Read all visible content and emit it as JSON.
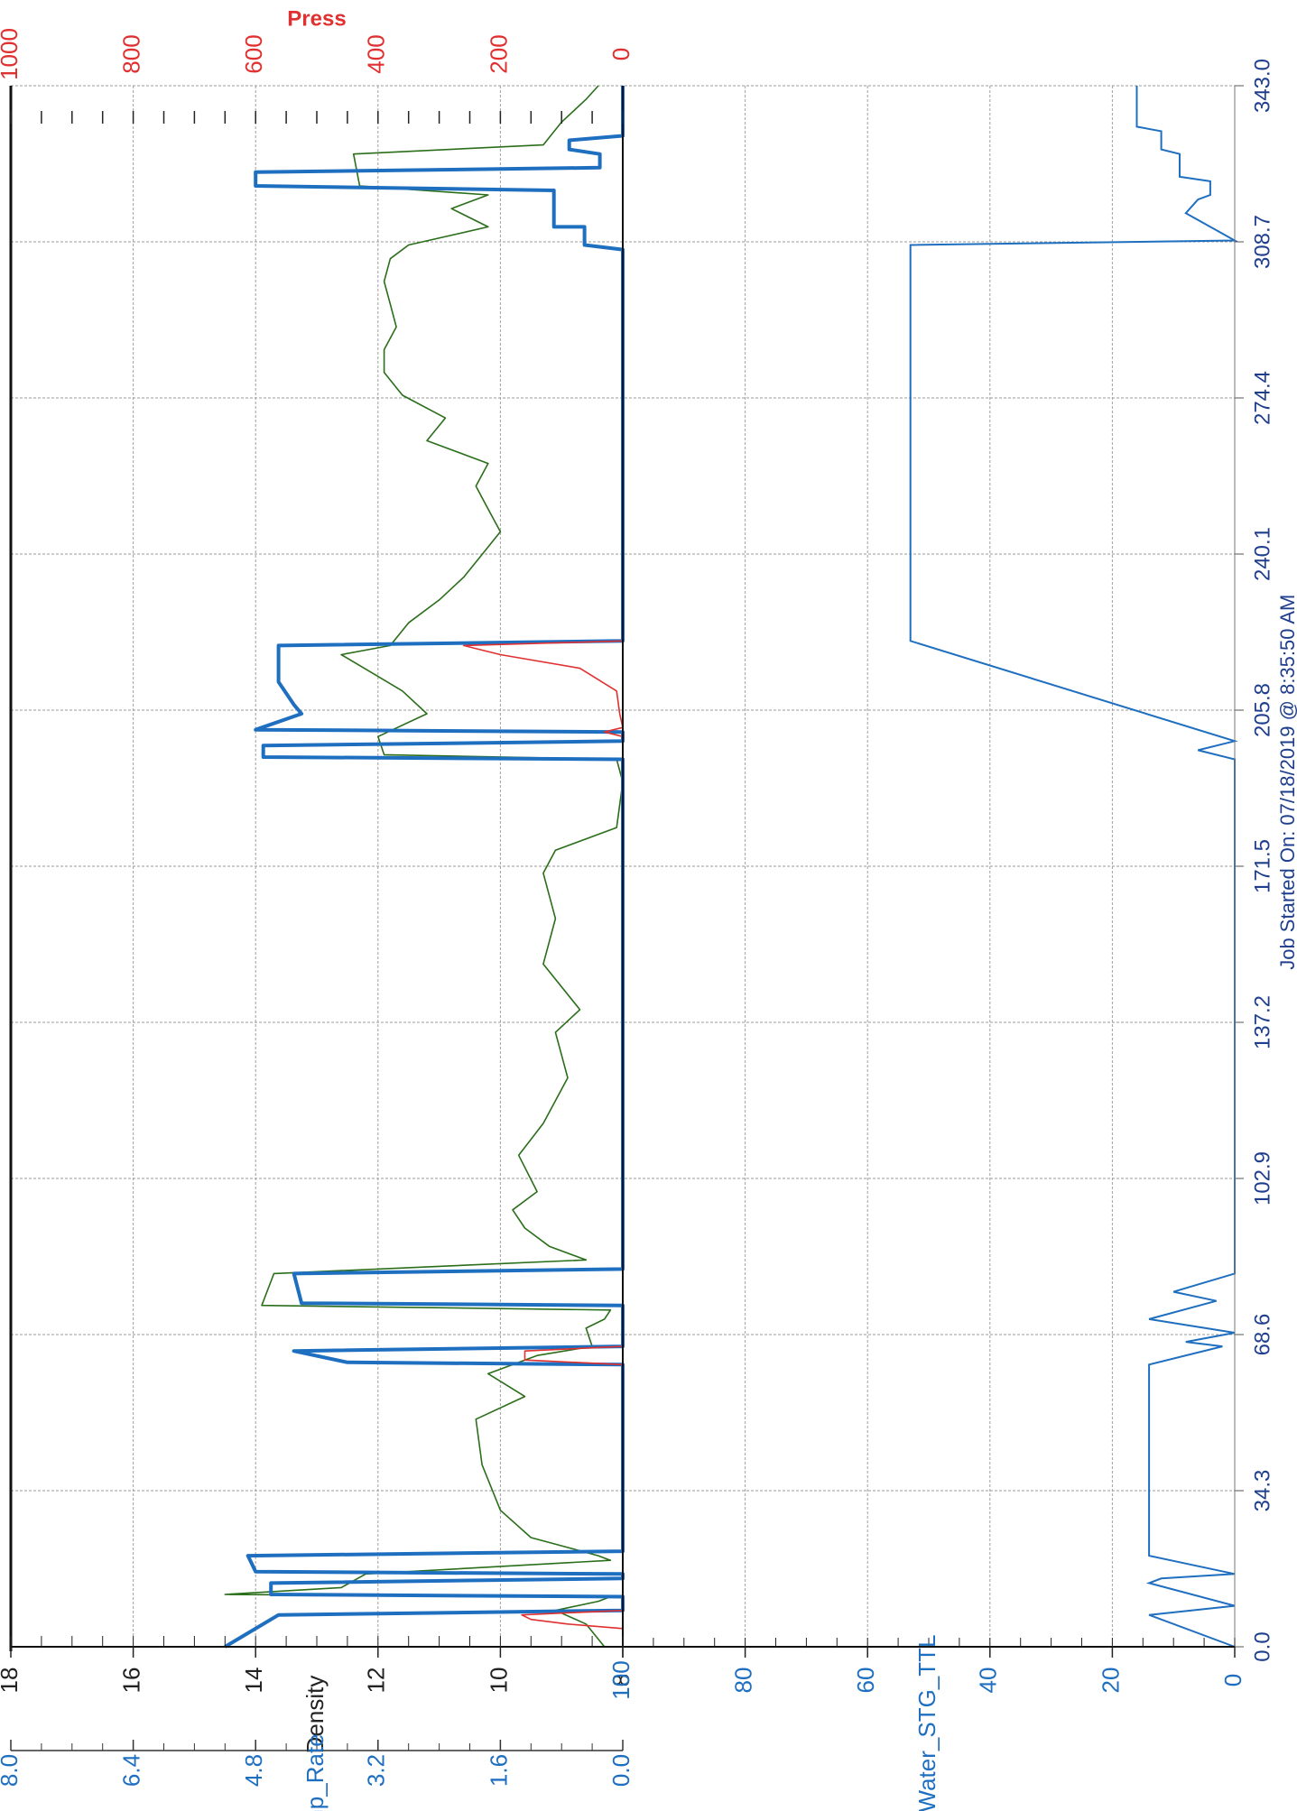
{
  "chart_data": [
    {
      "type": "line",
      "panel": "upper",
      "x_ticks": [
        "0.0",
        "34.3",
        "68.6",
        "102.9",
        "137.2",
        "171.5",
        "205.8",
        "240.1",
        "274.4",
        "308.7",
        "343.0"
      ],
      "xlim": [
        0,
        343
      ],
      "axes": {
        "press": {
          "label": "Press",
          "ticks": [
            "0",
            "200",
            "400",
            "600",
            "800",
            "1000"
          ],
          "range": [
            0,
            1000
          ],
          "color": "#e03030"
        },
        "density": {
          "label": "Density",
          "ticks": [
            "8",
            "10",
            "12",
            "14",
            "16",
            "18"
          ],
          "range": [
            8,
            18
          ],
          "color": "#222222"
        },
        "pump_rate": {
          "label": "Pump_Rate",
          "ticks": [
            "0.0",
            "1.6",
            "3.2",
            "4.8",
            "6.4",
            "8.0"
          ],
          "range": [
            0,
            8
          ],
          "color": "#1f6fc0"
        }
      },
      "grid": true,
      "series": [
        {
          "axis": "density",
          "color": "#2a6e1a",
          "note": "density trace (green/black)",
          "points": [
            [
              0,
              8.3
            ],
            [
              5,
              8.6
            ],
            [
              8,
              9.1
            ],
            [
              10,
              8.4
            ],
            [
              11,
              8.2
            ],
            [
              11.5,
              14.5
            ],
            [
              13,
              12.6
            ],
            [
              16,
              12.2
            ],
            [
              19,
              8.2
            ],
            [
              20,
              8.4
            ],
            [
              24,
              9.5
            ],
            [
              30,
              10.0
            ],
            [
              40,
              10.3
            ],
            [
              50,
              10.4
            ],
            [
              55,
              9.6
            ],
            [
              60,
              10.2
            ],
            [
              64,
              9.4
            ],
            [
              66,
              8.5
            ],
            [
              70,
              8.6
            ],
            [
              72,
              8.3
            ],
            [
              74,
              8.2
            ],
            [
              75,
              13.9
            ],
            [
              82,
              13.7
            ],
            [
              85,
              8.6
            ],
            [
              88,
              9.2
            ],
            [
              92,
              9.6
            ],
            [
              96,
              9.8
            ],
            [
              100,
              9.4
            ],
            [
              108,
              9.7
            ],
            [
              115,
              9.3
            ],
            [
              125,
              8.9
            ],
            [
              135,
              9.1
            ],
            [
              140,
              8.7
            ],
            [
              150,
              9.3
            ],
            [
              160,
              9.1
            ],
            [
              170,
              9.3
            ],
            [
              175,
              9.1
            ],
            [
              180,
              8.1
            ],
            [
              190,
              8.0
            ],
            [
              195,
              8.1
            ],
            [
              196,
              11.9
            ],
            [
              200,
              12.0
            ],
            [
              205,
              11.2
            ],
            [
              210,
              11.6
            ],
            [
              214,
              12.1
            ],
            [
              218,
              12.6
            ],
            [
              220,
              11.8
            ],
            [
              225,
              11.5
            ],
            [
              230,
              11.0
            ],
            [
              235,
              10.6
            ],
            [
              240,
              10.3
            ],
            [
              245,
              10.0
            ],
            [
              250,
              10.2
            ],
            [
              255,
              10.4
            ],
            [
              260,
              10.2
            ],
            [
              265,
              11.2
            ],
            [
              270,
              10.9
            ],
            [
              275,
              11.6
            ],
            [
              280,
              11.9
            ],
            [
              285,
              11.9
            ],
            [
              290,
              11.7
            ],
            [
              295,
              11.8
            ],
            [
              300,
              11.9
            ],
            [
              305,
              11.8
            ],
            [
              308,
              11.5
            ],
            [
              312,
              10.2
            ],
            [
              316,
              10.8
            ],
            [
              319,
              10.2
            ],
            [
              321,
              12.3
            ],
            [
              328,
              12.4
            ],
            [
              330,
              9.3
            ],
            [
              335,
              9.0
            ],
            [
              340,
              8.6
            ],
            [
              343,
              8.4
            ]
          ]
        },
        {
          "axis": "pump_rate",
          "color": "#1f6fc0",
          "note": "pump rate (thick blue)",
          "points": [
            [
              0,
              5.2
            ],
            [
              2,
              5.0
            ],
            [
              7,
              4.5
            ],
            [
              8,
              0.0
            ],
            [
              11,
              0.0
            ],
            [
              11.5,
              4.6
            ],
            [
              14,
              4.6
            ],
            [
              15,
              0.0
            ],
            [
              16,
              0.0
            ],
            [
              16.5,
              4.8
            ],
            [
              20,
              4.9
            ],
            [
              21,
              0.0
            ],
            [
              62,
              0.0
            ],
            [
              62.5,
              3.6
            ],
            [
              65,
              4.3
            ],
            [
              66,
              0.0
            ],
            [
              75,
              0.0
            ],
            [
              75.5,
              4.2
            ],
            [
              82,
              4.3
            ],
            [
              83,
              0.0
            ],
            [
              195,
              0.0
            ],
            [
              195.5,
              4.7
            ],
            [
              198,
              4.7
            ],
            [
              199,
              0.0
            ],
            [
              201,
              0.0
            ],
            [
              201.5,
              4.8
            ],
            [
              205,
              4.2
            ],
            [
              207,
              4.3
            ],
            [
              212,
              4.5
            ],
            [
              220,
              4.5
            ],
            [
              221,
              0.0
            ],
            [
              307,
              0.0
            ],
            [
              308,
              0.5
            ],
            [
              312,
              0.5
            ],
            [
              312,
              0.9
            ],
            [
              320,
              0.9
            ],
            [
              321,
              4.8
            ],
            [
              324,
              4.8
            ],
            [
              325,
              0.3
            ],
            [
              328,
              0.3
            ],
            [
              329,
              0.7
            ],
            [
              331,
              0.7
            ],
            [
              332,
              0.0
            ],
            [
              343,
              0.0
            ]
          ]
        },
        {
          "axis": "press",
          "color": "#e03030",
          "note": "treating pressure (red)",
          "points": [
            [
              0,
              0
            ],
            [
              4,
              0
            ],
            [
              5,
              90
            ],
            [
              6,
              150
            ],
            [
              7,
              165
            ],
            [
              8,
              0
            ],
            [
              62,
              0
            ],
            [
              63,
              160
            ],
            [
              65,
              160
            ],
            [
              66,
              0
            ],
            [
              200,
              0
            ],
            [
              201,
              30
            ],
            [
              202,
              0
            ],
            [
              205,
              5
            ],
            [
              210,
              10
            ],
            [
              215,
              70
            ],
            [
              218,
              200
            ],
            [
              220,
              260
            ],
            [
              221,
              0
            ],
            [
              343,
              0
            ]
          ]
        }
      ]
    },
    {
      "type": "line",
      "panel": "lower",
      "ylabel": "Water_STG_TTL",
      "y_ticks": [
        "0",
        "20",
        "40",
        "60",
        "80",
        "100"
      ],
      "ylim": [
        0,
        100
      ],
      "xlim": [
        0,
        343
      ],
      "grid": true,
      "series": [
        {
          "color": "#1f6fc0",
          "points": [
            [
              0,
              0
            ],
            [
              7,
              14
            ],
            [
              9,
              0
            ],
            [
              14,
              14
            ],
            [
              15,
              12
            ],
            [
              16,
              0
            ],
            [
              20,
              14
            ],
            [
              62,
              14
            ],
            [
              66,
              2
            ],
            [
              67,
              8
            ],
            [
              69,
              0
            ],
            [
              72,
              14
            ],
            [
              76,
              3
            ],
            [
              78,
              10
            ],
            [
              82,
              0
            ],
            [
              195,
              0
            ],
            [
              197,
              6
            ],
            [
              199,
              0
            ],
            [
              221,
              53
            ],
            [
              308,
              53
            ],
            [
              309,
              0
            ],
            [
              315,
              8
            ],
            [
              318,
              6
            ],
            [
              319,
              4
            ],
            [
              322,
              4
            ],
            [
              323,
              9
            ],
            [
              328,
              9
            ],
            [
              329,
              12
            ],
            [
              333,
              12
            ],
            [
              334,
              16
            ],
            [
              343,
              16
            ]
          ]
        }
      ]
    }
  ],
  "footer": {
    "job_started": "Job Started On: 07/18/2019 @ 8:35:50 AM"
  }
}
